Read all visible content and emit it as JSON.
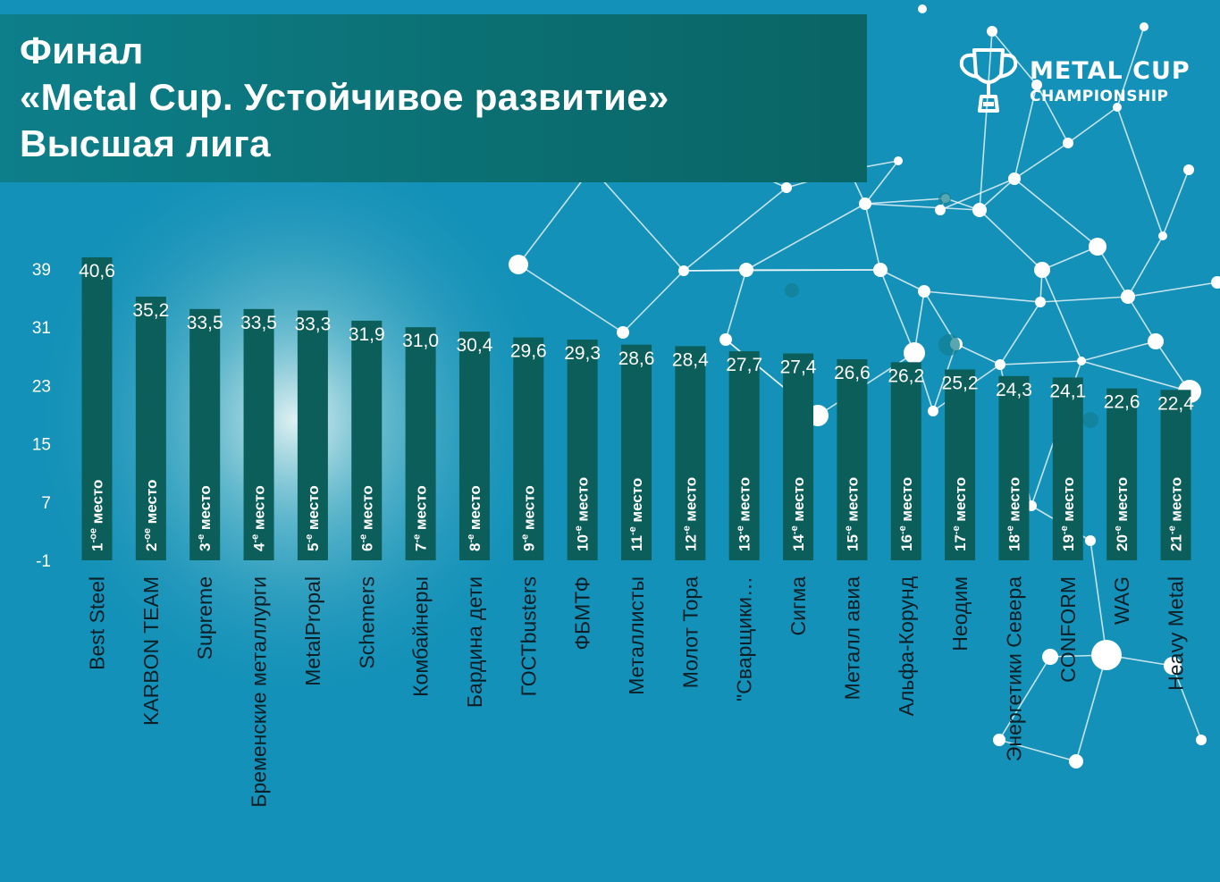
{
  "header": {
    "line1": "Финал",
    "line2": "«Metal Cup. Устойчивое развитие»",
    "line3": "Высшая лига"
  },
  "logo": {
    "line1": "METAL CUP",
    "line2": "CHAMPIONSHIP",
    "icon": "trophy-icon"
  },
  "colors": {
    "background": "#1491b8",
    "bar": "#0c5e5a",
    "text": "#ffffff"
  },
  "chart_data": {
    "type": "bar",
    "categories": [
      "Best Steel",
      "KARBON TEAM",
      "Supreme",
      "Бременские металлурги",
      "MetalPropal",
      "Schemers",
      "Комбайнеры",
      "Бардина дети",
      "ГОСТbusters",
      "ФБМТФ",
      "Металлисты",
      "Молот Тора",
      "\"Сварщики…",
      "Сигма",
      "Металл авиа",
      "Альфа-Корунд",
      "Неодим",
      "Энергетики Севера",
      "CONFORM",
      "WAG",
      "Heavy Metal"
    ],
    "values": [
      40.6,
      35.2,
      33.5,
      33.5,
      33.3,
      31.9,
      31.0,
      30.4,
      29.6,
      29.3,
      28.6,
      28.4,
      27.7,
      27.4,
      26.6,
      26.2,
      25.2,
      24.3,
      24.1,
      22.6,
      22.4
    ],
    "value_labels": [
      "40,6",
      "35,2",
      "33,5",
      "33,5",
      "33,3",
      "31,9",
      "31,0",
      "30,4",
      "29,6",
      "29,3",
      "28,6",
      "28,4",
      "27,7",
      "27,4",
      "26,6",
      "26,2",
      "25,2",
      "24,3",
      "24,1",
      "22,6",
      "22,4"
    ],
    "place_numbers": [
      "1",
      "2",
      "3",
      "4",
      "5",
      "6",
      "7",
      "8",
      "9",
      "10",
      "11",
      "12",
      "13",
      "14",
      "15",
      "16",
      "17",
      "18",
      "19",
      "20",
      "21"
    ],
    "place_suffixes": [
      "-ое",
      "-ое",
      "-е",
      "-е",
      "-е",
      "-е",
      "-е",
      "-е",
      "-е",
      "-е",
      "-е",
      "-е",
      "-е",
      "-е",
      "-е",
      "-е",
      "-е",
      "-е",
      "-е",
      "-е",
      "-е"
    ],
    "place_word": "место",
    "yticks": [
      "39",
      "31",
      "23",
      "15",
      "7",
      "-1"
    ],
    "ylim": [
      -1,
      39
    ],
    "grid": false,
    "legend": "none"
  }
}
